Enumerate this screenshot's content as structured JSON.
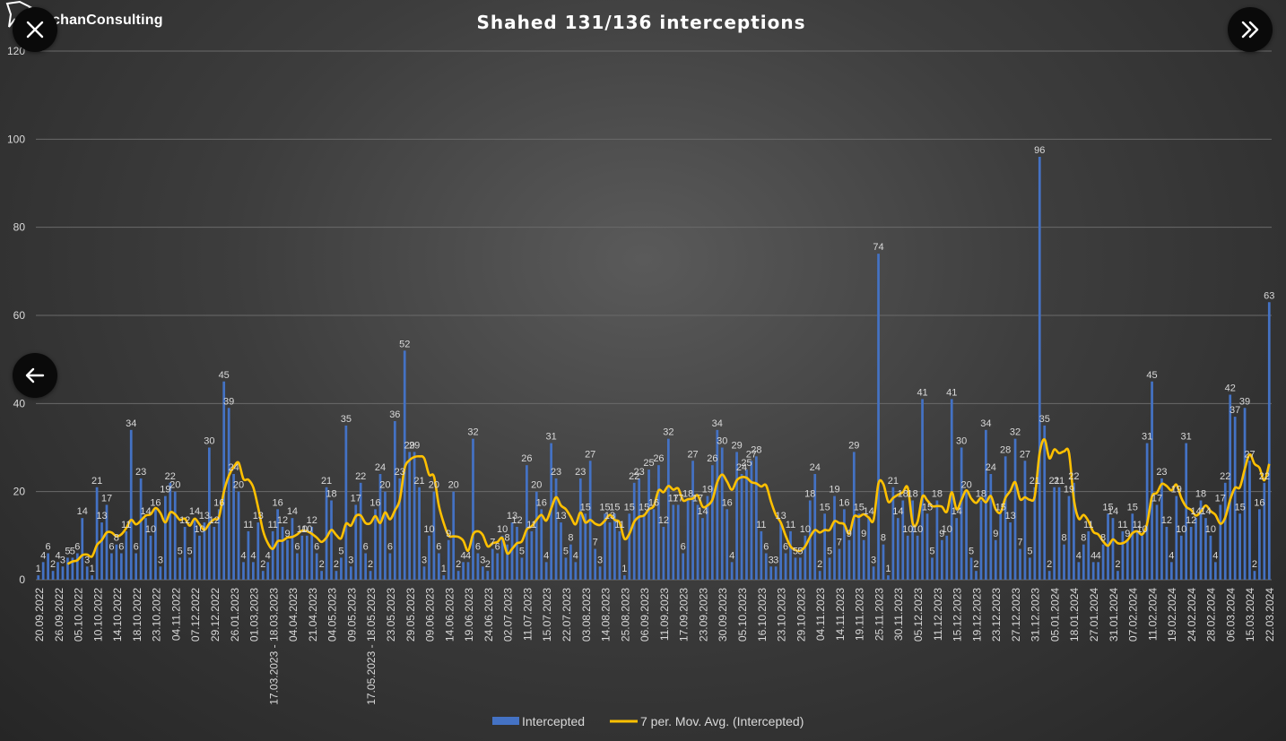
{
  "app": {
    "brand": "chanConsulting"
  },
  "buttons": {
    "close": "close",
    "next": "next",
    "back": "back"
  },
  "colors": {
    "bar": "#4472C4",
    "line": "#FFC000",
    "text": "#ffffff",
    "label": "#d9d9d9",
    "grid": "#6a6a6a"
  },
  "chart_data": {
    "type": "bar",
    "title": "Shahed 131/136 interceptions",
    "xlabel": "",
    "ylabel": "",
    "ylim": [
      0,
      120
    ],
    "yticks": [
      0,
      20,
      40,
      60,
      80,
      100,
      120
    ],
    "grid": true,
    "legend_position": "bottom",
    "series": [
      {
        "name": "Intercepted",
        "kind": "bar",
        "values": [
          1,
          4,
          6,
          2,
          4,
          3,
          5,
          5,
          6,
          14,
          3,
          1,
          21,
          13,
          17,
          6,
          8,
          6,
          11,
          34,
          6,
          23,
          14,
          10,
          16,
          3,
          19,
          22,
          20,
          5,
          12,
          5,
          14,
          10,
          13,
          30,
          12,
          16,
          45,
          39,
          24,
          20,
          4,
          11,
          4,
          13,
          2,
          4,
          11,
          16,
          12,
          9,
          14,
          6,
          10,
          10,
          12,
          6,
          2,
          21,
          18,
          2,
          5,
          35,
          3,
          17,
          22,
          6,
          2,
          16,
          24,
          20,
          6,
          36,
          23,
          52,
          29,
          29,
          21,
          3,
          10,
          20,
          6,
          1,
          9,
          20,
          2,
          4,
          4,
          32,
          6,
          3,
          2,
          7,
          6,
          10,
          8,
          13,
          12,
          5,
          26,
          11,
          20,
          16,
          4,
          31,
          23,
          13,
          5,
          8,
          4,
          23,
          15,
          27,
          7,
          3,
          15,
          13,
          15,
          11,
          1,
          15,
          22,
          23,
          15,
          25,
          16,
          26,
          12,
          32,
          17,
          17,
          6,
          18,
          27,
          17,
          14,
          19,
          26,
          34,
          30,
          16,
          4,
          29,
          24,
          25,
          27,
          28,
          11,
          6,
          3,
          3,
          13,
          6,
          11,
          5,
          5,
          10,
          18,
          24,
          2,
          15,
          5,
          19,
          7,
          16,
          9,
          29,
          15,
          9,
          14,
          3,
          74,
          8,
          1,
          21,
          14,
          18,
          10,
          18,
          10,
          41,
          15,
          5,
          18,
          9,
          10,
          41,
          14,
          30,
          20,
          5,
          2,
          18,
          34,
          24,
          9,
          15,
          28,
          13,
          32,
          7,
          27,
          5,
          21,
          96,
          35,
          2,
          21,
          21,
          8,
          19,
          22,
          4,
          8,
          11,
          4,
          4,
          8,
          15,
          14,
          2,
          11,
          9,
          15,
          11,
          10,
          31,
          45,
          17,
          23,
          12,
          4,
          19,
          10,
          31,
          12,
          14,
          18,
          14,
          10,
          4,
          17,
          22,
          42,
          37,
          15,
          39,
          27,
          2,
          16,
          22,
          63
        ]
      },
      {
        "name": "7 per. Mov. Avg. (Intercepted)",
        "kind": "line",
        "start_index": 6
      }
    ],
    "tick_labels": [
      "20.09.2022",
      "26.09.2022",
      "05.10.2022",
      "10.10.2022",
      "14.10.2022",
      "18.10.2022",
      "23.10.2022",
      "04.11.2022",
      "07.12.2022",
      "29.12.2022",
      "26.01.2023",
      "01.03.2023",
      "17.03.2023 - 18.03.2023",
      "04.04.2023",
      "21.04.2023",
      "04.05.2023",
      "09.05.2023",
      "17.05.2023 - 18.05.2023",
      "23.05.2023",
      "29.05.2023",
      "09.06.2023",
      "14.06.2023",
      "19.06.2023",
      "24.06.2023",
      "02.07.2023",
      "11.07.2023",
      "15.07.2023",
      "22.07.2023",
      "03.08.2023",
      "14.08.2023",
      "25.08.2023",
      "06.09.2023",
      "11.09.2023",
      "17.09.2023",
      "23.09.2023",
      "30.09.2023",
      "05.10.2023",
      "16.10.2023",
      "23.10.2023",
      "29.10.2023",
      "04.11.2023",
      "14.11.2023",
      "19.11.2023",
      "25.11.2023",
      "30.11.2023",
      "05.12.2023",
      "11.12.2023",
      "15.12.2023",
      "19.12.2023",
      "23.12.2023",
      "27.12.2023",
      "31.12.2023",
      "05.01.2024",
      "18.01.2024",
      "27.01.2024",
      "31.01.2024",
      "07.02.2024",
      "11.02.2024",
      "19.02.2024",
      "24.02.2024",
      "28.02.2024",
      "06.03.2024",
      "15.03.2024",
      "22.03.2024"
    ]
  }
}
